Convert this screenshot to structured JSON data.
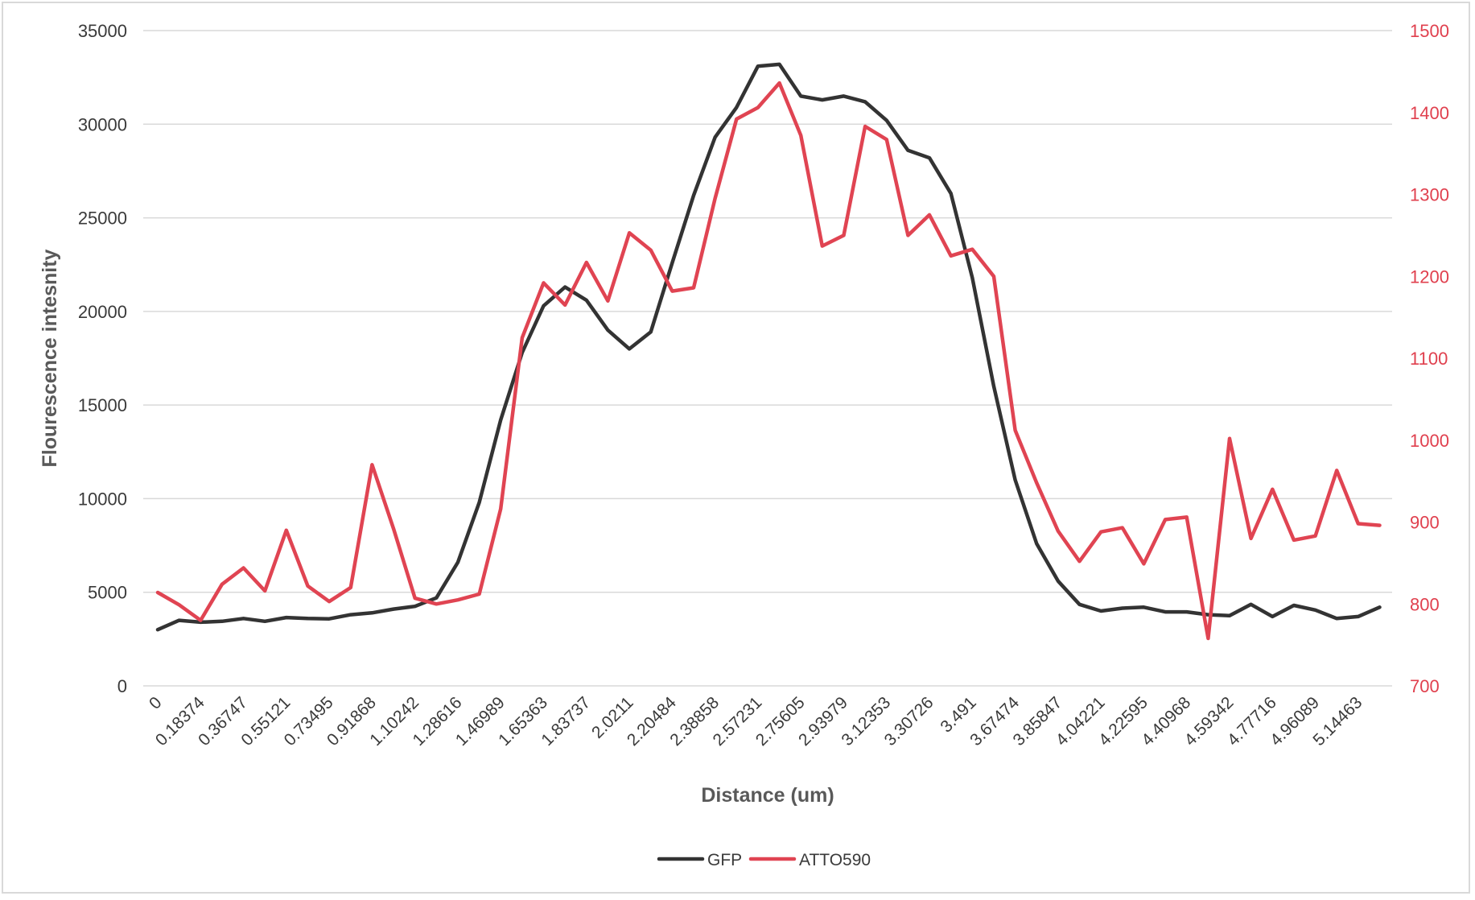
{
  "chart_data": {
    "type": "line",
    "title": "",
    "xlabel": "Distance (um)",
    "ylabel": "Flourescence intesnity",
    "y_left_lim": [
      0,
      35000
    ],
    "y_left_ticks": [
      0,
      5000,
      10000,
      15000,
      20000,
      25000,
      30000,
      35000
    ],
    "y_right_lim": [
      700,
      1500
    ],
    "y_right_ticks": [
      700,
      800,
      900,
      1000,
      1100,
      1200,
      1300,
      1400,
      1500
    ],
    "grid": true,
    "legend_position": "bottom",
    "x_tick_labels": [
      "0",
      "0.18374",
      "0.36747",
      "0.55121",
      "0.73495",
      "0.91868",
      "1.10242",
      "1.28616",
      "1.46989",
      "1.65363",
      "1.83737",
      "2.0211",
      "2.20484",
      "2.38858",
      "2.57231",
      "2.75605",
      "2.93979",
      "3.12353",
      "3.30726",
      "3.491",
      "3.67474",
      "3.85847",
      "4.04221",
      "4.22595",
      "4.40968",
      "4.59342",
      "4.77716",
      "4.96089",
      "5.14463"
    ],
    "x_label_every": 2,
    "n_points": 58,
    "series": [
      {
        "name": "GFP",
        "axis": "left",
        "color": "#333333",
        "values": [
          3000,
          3500,
          3400,
          3450,
          3600,
          3450,
          3650,
          3600,
          3580,
          3800,
          3900,
          4100,
          4250,
          4700,
          6600,
          9800,
          14200,
          17800,
          20300,
          21300,
          20600,
          19000,
          18000,
          18900,
          22600,
          26200,
          29300,
          30900,
          33100,
          33200,
          31500,
          31300,
          31500,
          31200,
          30200,
          28600,
          28200,
          26300,
          21800,
          16000,
          11000,
          7600,
          5600,
          4350,
          4000,
          4150,
          4200,
          3950,
          3950,
          3800,
          3750,
          4350,
          3700,
          4300,
          4050,
          3600,
          3700,
          4200
        ]
      },
      {
        "name": "ATTO590",
        "axis": "right",
        "color": "#e04452",
        "values": [
          814,
          799,
          780,
          824,
          844,
          816,
          890,
          822,
          803,
          820,
          970,
          892,
          807,
          800,
          805,
          812,
          916,
          1125,
          1192,
          1165,
          1217,
          1170,
          1253,
          1232,
          1182,
          1186,
          1295,
          1392,
          1406,
          1436,
          1372,
          1237,
          1250,
          1383,
          1367,
          1250,
          1275,
          1225,
          1233,
          1200,
          1012,
          948,
          889,
          852,
          888,
          893,
          849,
          903,
          906,
          758,
          1002,
          880,
          940,
          878,
          883,
          963,
          898,
          896
        ]
      }
    ]
  }
}
